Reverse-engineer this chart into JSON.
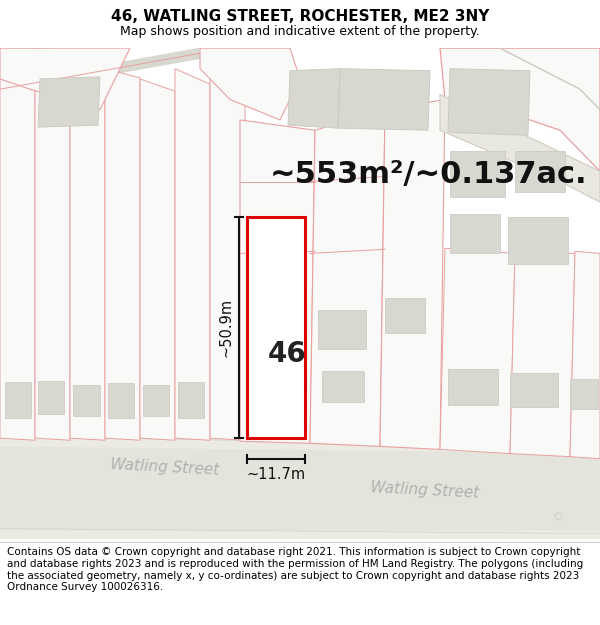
{
  "title": "46, WATLING STREET, ROCHESTER, ME2 3NY",
  "subtitle": "Map shows position and indicative extent of the property.",
  "area_text": "~553m²/~0.137ac.",
  "width_label": "~11.7m",
  "height_label": "~50.9m",
  "number_label": "46",
  "footer_text": "Contains OS data © Crown copyright and database right 2021. This information is subject to Crown copyright and database rights 2023 and is reproduced with the permission of HM Land Registry. The polygons (including the associated geometry, namely x, y co-ordinates) are subject to Crown copyright and database rights 2023 Ordnance Survey 100026316.",
  "bg_color": "#ffffff",
  "map_bg": "#f9f9f7",
  "outline_color": "#e8a0a0",
  "building_fill": "#d8d8d0",
  "building_edge": "#c8c8c0",
  "property_outline": "#dd0000",
  "property_fill": "#ffffff",
  "dim_color": "#111111",
  "street_text_color": "#b0b0b0",
  "road_fill": "#eeeeea",
  "title_fontsize": 11,
  "subtitle_fontsize": 9,
  "area_fontsize": 22,
  "number_fontsize": 20,
  "dim_fontsize": 10.5,
  "street_fontsize": 11,
  "footer_fontsize": 7.5
}
